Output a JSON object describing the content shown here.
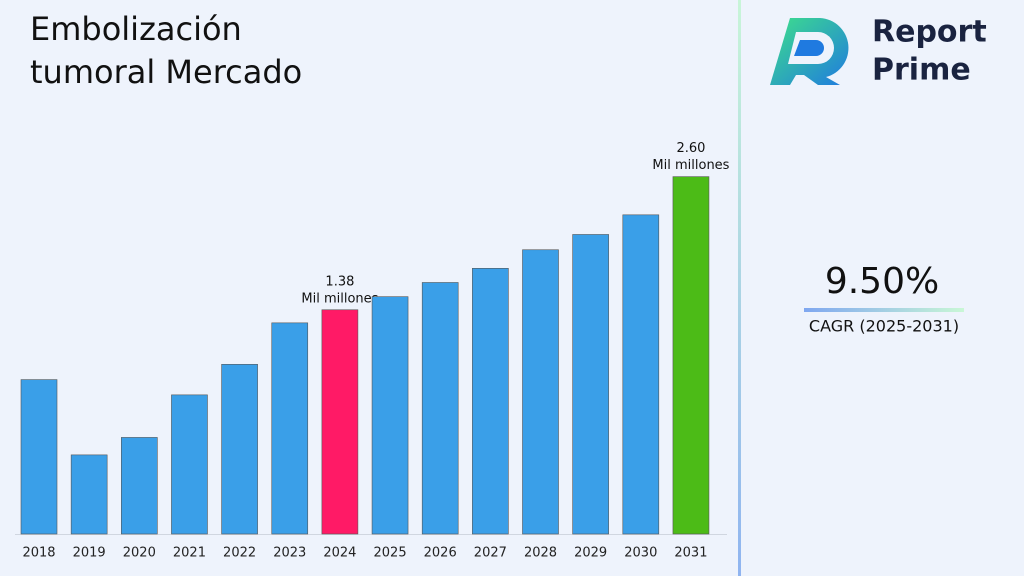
{
  "chart_data": {
    "type": "bar",
    "title": "Embolización tumoral Mercado",
    "categories": [
      "2018",
      "2019",
      "2020",
      "2021",
      "2022",
      "2023",
      "2024",
      "2025",
      "2026",
      "2027",
      "2028",
      "2029",
      "2030",
      "2031"
    ],
    "values": [
      0.74,
      0.05,
      0.21,
      0.6,
      0.88,
      1.26,
      1.38,
      1.5,
      1.63,
      1.76,
      1.93,
      2.07,
      2.25,
      2.6
    ],
    "value_labels": [
      null,
      null,
      null,
      null,
      null,
      null,
      "1.38",
      null,
      null,
      null,
      null,
      null,
      null,
      "2.60"
    ],
    "value_label_unit": "Mil millones",
    "colors": [
      "#3a9fe8",
      "#3a9fe8",
      "#3a9fe8",
      "#3a9fe8",
      "#3a9fe8",
      "#3a9fe8",
      "#ff1a66",
      "#3a9fe8",
      "#3a9fe8",
      "#3a9fe8",
      "#3a9fe8",
      "#3a9fe8",
      "#3a9fe8",
      "#4cbb17"
    ],
    "ylim": [
      -0.675,
      3.0
    ]
  },
  "sidebar": {
    "brand_line1": "Report",
    "brand_line2": "Prime",
    "cagr_value": "9.50%",
    "cagr_label": "CAGR (2025-2031)"
  }
}
